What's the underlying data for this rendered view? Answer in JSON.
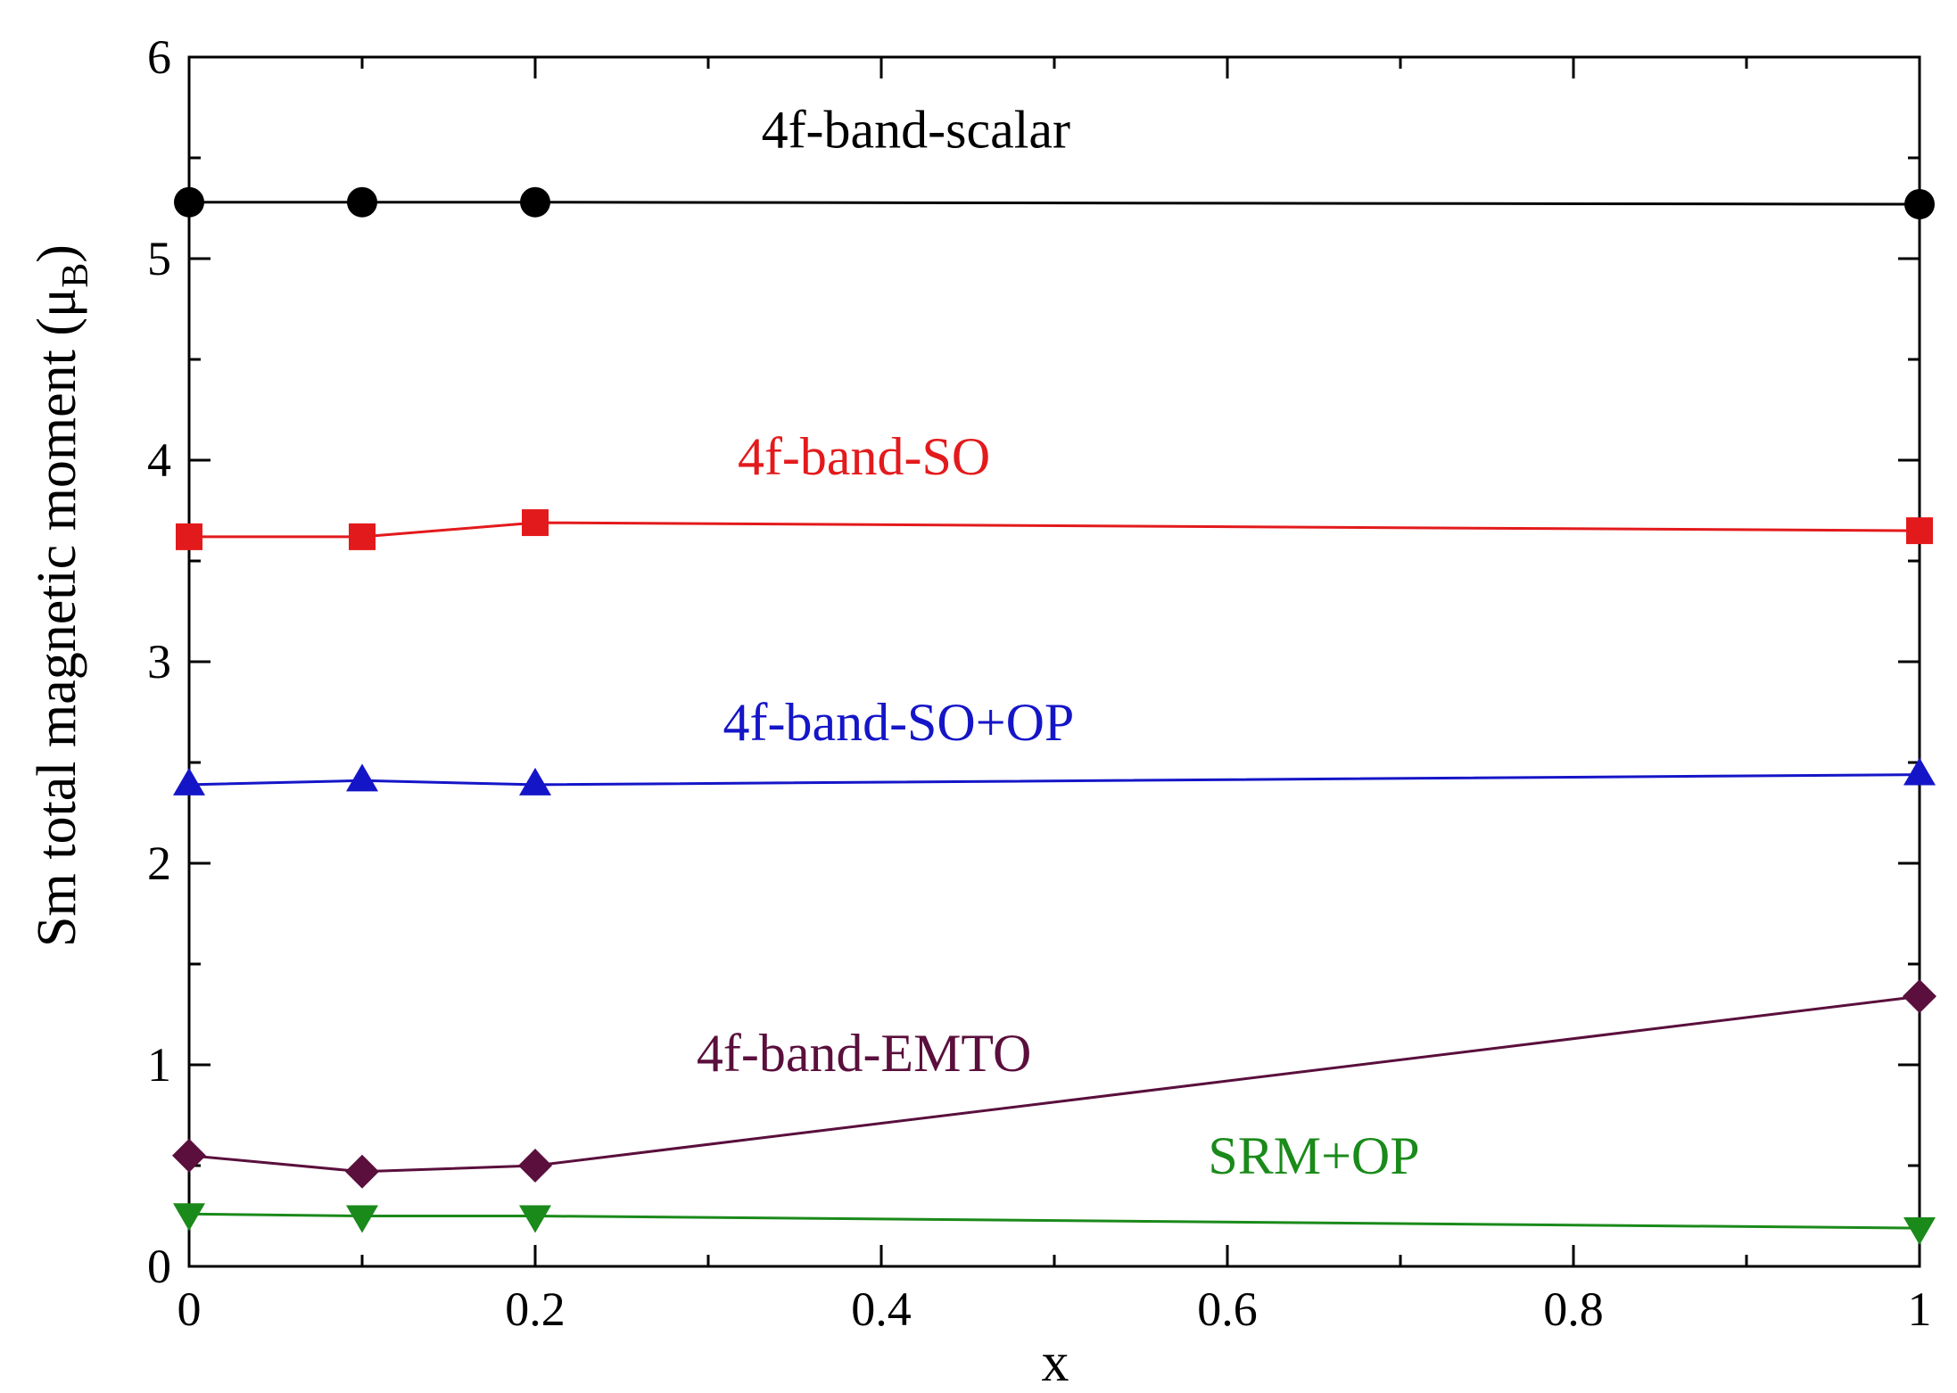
{
  "chart_data": {
    "type": "line",
    "title": "",
    "xlabel": "x",
    "ylabel": "Sm total magnetic moment (μ",
    "ylabel_sub": "B",
    "ylabel_close": ")",
    "xlim": [
      0,
      1
    ],
    "ylim": [
      0,
      6
    ],
    "xticks": [
      0,
      0.2,
      0.4,
      0.6,
      0.8,
      1
    ],
    "xtick_labels": [
      "0",
      "0.2",
      "0.4",
      "0.6",
      "0.8",
      "1"
    ],
    "yticks": [
      0,
      1,
      2,
      3,
      4,
      5,
      6
    ],
    "ytick_labels": [
      "0",
      "1",
      "2",
      "3",
      "4",
      "5",
      "6"
    ],
    "grid": false,
    "series": [
      {
        "name": "4f-band-scalar",
        "color": "#000000",
        "marker": "circle",
        "x": [
          0,
          0.1,
          0.2,
          1
        ],
        "values": [
          5.28,
          5.28,
          5.28,
          5.27
        ],
        "label_pos": [
          0.42,
          5.55
        ]
      },
      {
        "name": "4f-band-SO",
        "color": "#e31a1c",
        "marker": "square",
        "x": [
          0,
          0.1,
          0.2,
          1
        ],
        "values": [
          3.62,
          3.62,
          3.69,
          3.65
        ],
        "label_pos": [
          0.39,
          3.93
        ]
      },
      {
        "name": "4f-band-SO+OP",
        "color": "#1515c8",
        "marker": "triangle-up",
        "x": [
          0,
          0.1,
          0.2,
          1
        ],
        "values": [
          2.39,
          2.41,
          2.39,
          2.44
        ],
        "label_pos": [
          0.41,
          2.61
        ]
      },
      {
        "name": "4f-band-EMTO",
        "color": "#5a0f3c",
        "marker": "diamond",
        "x": [
          0,
          0.1,
          0.2,
          1
        ],
        "values": [
          0.55,
          0.47,
          0.5,
          1.34
        ],
        "label_pos": [
          0.39,
          0.97
        ]
      },
      {
        "name": "SRM+OP",
        "color": "#1a8a1a",
        "marker": "triangle-down",
        "x": [
          0,
          0.1,
          0.2,
          1
        ],
        "values": [
          0.26,
          0.25,
          0.25,
          0.19
        ],
        "label_pos": [
          0.65,
          0.46
        ]
      }
    ]
  }
}
